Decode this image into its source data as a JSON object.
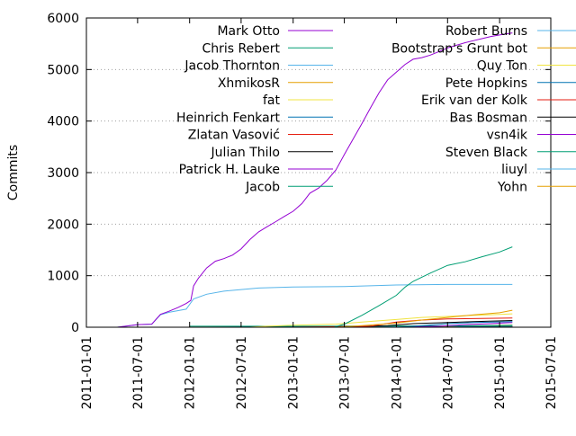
{
  "chart_data": {
    "type": "line",
    "title": "",
    "xlabel": "",
    "ylabel": "Commits",
    "x_type": "date",
    "xlim": [
      "2011-01-01",
      "2015-07-01"
    ],
    "ylim": [
      0,
      6000
    ],
    "x_ticks": [
      "2011-01-01",
      "2011-07-01",
      "2012-01-01",
      "2012-07-01",
      "2013-01-01",
      "2013-07-01",
      "2014-01-01",
      "2014-07-01",
      "2015-01-01",
      "2015-07-01"
    ],
    "y_ticks": [
      0,
      1000,
      2000,
      3000,
      4000,
      5000,
      6000
    ],
    "grid": "horizontal dotted",
    "legend_placement": "top, two columns",
    "series": [
      {
        "name": "Mark Otto",
        "color": "#9400d3",
        "points": [
          [
            "2011-04-20",
            0
          ],
          [
            "2011-07-01",
            50
          ],
          [
            "2011-08-20",
            60
          ],
          [
            "2011-09-20",
            250
          ],
          [
            "2011-10-20",
            310
          ],
          [
            "2011-11-20",
            380
          ],
          [
            "2011-12-20",
            460
          ],
          [
            "2012-01-05",
            520
          ],
          [
            "2012-01-15",
            800
          ],
          [
            "2012-02-01",
            950
          ],
          [
            "2012-03-01",
            1150
          ],
          [
            "2012-04-01",
            1280
          ],
          [
            "2012-05-01",
            1330
          ],
          [
            "2012-06-01",
            1400
          ],
          [
            "2012-07-01",
            1520
          ],
          [
            "2012-08-01",
            1700
          ],
          [
            "2012-09-01",
            1850
          ],
          [
            "2012-10-01",
            1950
          ],
          [
            "2012-11-01",
            2050
          ],
          [
            "2012-12-01",
            2150
          ],
          [
            "2013-01-01",
            2250
          ],
          [
            "2013-02-01",
            2400
          ],
          [
            "2013-03-01",
            2600
          ],
          [
            "2013-04-01",
            2700
          ],
          [
            "2013-05-01",
            2850
          ],
          [
            "2013-06-01",
            3050
          ],
          [
            "2013-07-01",
            3350
          ],
          [
            "2013-08-01",
            3650
          ],
          [
            "2013-09-01",
            3950
          ],
          [
            "2013-10-01",
            4250
          ],
          [
            "2013-11-01",
            4550
          ],
          [
            "2013-12-01",
            4800
          ],
          [
            "2014-01-01",
            4950
          ],
          [
            "2014-02-01",
            5100
          ],
          [
            "2014-03-01",
            5200
          ],
          [
            "2014-04-01",
            5230
          ],
          [
            "2014-05-01",
            5280
          ],
          [
            "2014-06-01",
            5350
          ],
          [
            "2014-07-01",
            5420
          ],
          [
            "2014-08-01",
            5470
          ],
          [
            "2014-09-01",
            5520
          ],
          [
            "2014-10-01",
            5560
          ],
          [
            "2014-11-01",
            5600
          ],
          [
            "2014-12-01",
            5640
          ],
          [
            "2015-01-01",
            5670
          ],
          [
            "2015-02-15",
            5710
          ]
        ]
      },
      {
        "name": "Chris Rebert",
        "color": "#009e73",
        "points": [
          [
            "2013-05-25",
            0
          ],
          [
            "2013-07-01",
            60
          ],
          [
            "2013-09-01",
            230
          ],
          [
            "2013-11-01",
            420
          ],
          [
            "2014-01-01",
            620
          ],
          [
            "2014-02-01",
            780
          ],
          [
            "2014-03-01",
            890
          ],
          [
            "2014-05-01",
            1050
          ],
          [
            "2014-07-01",
            1200
          ],
          [
            "2014-09-01",
            1270
          ],
          [
            "2014-11-01",
            1370
          ],
          [
            "2015-01-01",
            1460
          ],
          [
            "2015-02-15",
            1560
          ]
        ]
      },
      {
        "name": "Jacob Thornton",
        "color": "#56b4e9",
        "points": [
          [
            "2011-04-20",
            0
          ],
          [
            "2011-07-01",
            50
          ],
          [
            "2011-08-20",
            60
          ],
          [
            "2011-09-20",
            240
          ],
          [
            "2011-10-20",
            290
          ],
          [
            "2011-12-20",
            350
          ],
          [
            "2012-01-15",
            550
          ],
          [
            "2012-03-01",
            640
          ],
          [
            "2012-05-01",
            700
          ],
          [
            "2012-07-01",
            730
          ],
          [
            "2012-09-01",
            760
          ],
          [
            "2013-01-01",
            780
          ],
          [
            "2013-07-01",
            790
          ],
          [
            "2014-01-01",
            820
          ],
          [
            "2014-07-01",
            830
          ],
          [
            "2015-02-15",
            830
          ]
        ]
      },
      {
        "name": "XhmikosR",
        "color": "#e69f00",
        "points": [
          [
            "2013-06-01",
            0
          ],
          [
            "2013-09-01",
            30
          ],
          [
            "2014-01-01",
            80
          ],
          [
            "2014-04-01",
            140
          ],
          [
            "2014-07-01",
            190
          ],
          [
            "2014-10-01",
            240
          ],
          [
            "2015-01-01",
            280
          ],
          [
            "2015-02-15",
            330
          ]
        ]
      },
      {
        "name": "fat",
        "color": "#f0e442",
        "points": [
          [
            "2012-08-01",
            0
          ],
          [
            "2012-10-01",
            20
          ],
          [
            "2013-01-01",
            40
          ],
          [
            "2013-06-01",
            60
          ],
          [
            "2013-09-01",
            100
          ],
          [
            "2014-01-01",
            150
          ],
          [
            "2014-04-01",
            190
          ],
          [
            "2014-07-01",
            210
          ],
          [
            "2014-10-01",
            230
          ],
          [
            "2015-01-01",
            250
          ],
          [
            "2015-02-15",
            260
          ]
        ]
      },
      {
        "name": "Heinrich Fenkart",
        "color": "#0072b2",
        "points": [
          [
            "2014-01-01",
            0
          ],
          [
            "2014-04-01",
            30
          ],
          [
            "2014-07-01",
            70
          ],
          [
            "2014-10-01",
            90
          ],
          [
            "2015-02-15",
            110
          ]
        ]
      },
      {
        "name": "Zlatan Vasović",
        "color": "#e51e10",
        "points": [
          [
            "2013-01-01",
            0
          ],
          [
            "2013-10-01",
            20
          ],
          [
            "2014-01-01",
            100
          ],
          [
            "2014-04-01",
            140
          ],
          [
            "2014-07-01",
            160
          ],
          [
            "2015-02-15",
            180
          ]
        ]
      },
      {
        "name": "Julian Thilo",
        "color": "#000000",
        "points": [
          [
            "2013-06-01",
            0
          ],
          [
            "2013-12-01",
            30
          ],
          [
            "2014-03-01",
            70
          ],
          [
            "2014-07-01",
            90
          ],
          [
            "2014-10-01",
            110
          ],
          [
            "2015-02-15",
            130
          ]
        ]
      },
      {
        "name": "Patrick H. Lauke",
        "color": "#9400d3",
        "points": [
          [
            "2014-02-01",
            0
          ],
          [
            "2014-06-01",
            20
          ],
          [
            "2014-09-01",
            50
          ],
          [
            "2014-12-01",
            70
          ],
          [
            "2015-02-15",
            90
          ]
        ]
      },
      {
        "name": "Jacob",
        "color": "#009e73",
        "points": [
          [
            "2012-01-01",
            20
          ],
          [
            "2013-01-01",
            20
          ],
          [
            "2014-01-01",
            25
          ],
          [
            "2015-02-15",
            30
          ]
        ]
      },
      {
        "name": "Robert Burns",
        "color": "#56b4e9",
        "points": [
          [
            "2013-08-01",
            0
          ],
          [
            "2014-01-01",
            15
          ],
          [
            "2014-07-01",
            25
          ],
          [
            "2015-02-15",
            40
          ]
        ]
      },
      {
        "name": "Bootstrap's Grunt bot",
        "color": "#e69f00",
        "points": [
          [
            "2014-03-01",
            0
          ],
          [
            "2014-07-01",
            20
          ],
          [
            "2015-02-15",
            45
          ]
        ]
      },
      {
        "name": "Quy Ton",
        "color": "#f0e442",
        "points": [
          [
            "2013-03-01",
            0
          ],
          [
            "2013-09-01",
            15
          ],
          [
            "2014-03-01",
            25
          ],
          [
            "2015-02-15",
            30
          ]
        ]
      },
      {
        "name": "Pete Hopkins",
        "color": "#0072b2",
        "points": [
          [
            "2012-03-01",
            0
          ],
          [
            "2012-09-01",
            10
          ],
          [
            "2013-06-01",
            15
          ],
          [
            "2015-02-15",
            20
          ]
        ]
      },
      {
        "name": "Erik van der Kolk",
        "color": "#e51e10",
        "points": [
          [
            "2014-07-01",
            0
          ],
          [
            "2014-10-01",
            10
          ],
          [
            "2015-02-15",
            15
          ]
        ]
      },
      {
        "name": "Bas Bosman",
        "color": "#000000",
        "points": [
          [
            "2014-01-01",
            0
          ],
          [
            "2014-06-01",
            8
          ],
          [
            "2015-02-15",
            12
          ]
        ]
      },
      {
        "name": "vsn4ik",
        "color": "#9400d3",
        "points": [
          [
            "2014-11-01",
            0
          ],
          [
            "2015-02-15",
            10
          ]
        ]
      },
      {
        "name": "Steven Black",
        "color": "#009e73",
        "points": [
          [
            "2013-08-01",
            0
          ],
          [
            "2014-02-01",
            6
          ],
          [
            "2015-02-15",
            8
          ]
        ]
      },
      {
        "name": "liuyl",
        "color": "#56b4e9",
        "points": [
          [
            "2014-09-01",
            0
          ],
          [
            "2015-02-15",
            6
          ]
        ]
      },
      {
        "name": "Yohn",
        "color": "#e69f00",
        "points": [
          [
            "2014-04-01",
            0
          ],
          [
            "2015-02-15",
            5
          ]
        ]
      }
    ]
  }
}
